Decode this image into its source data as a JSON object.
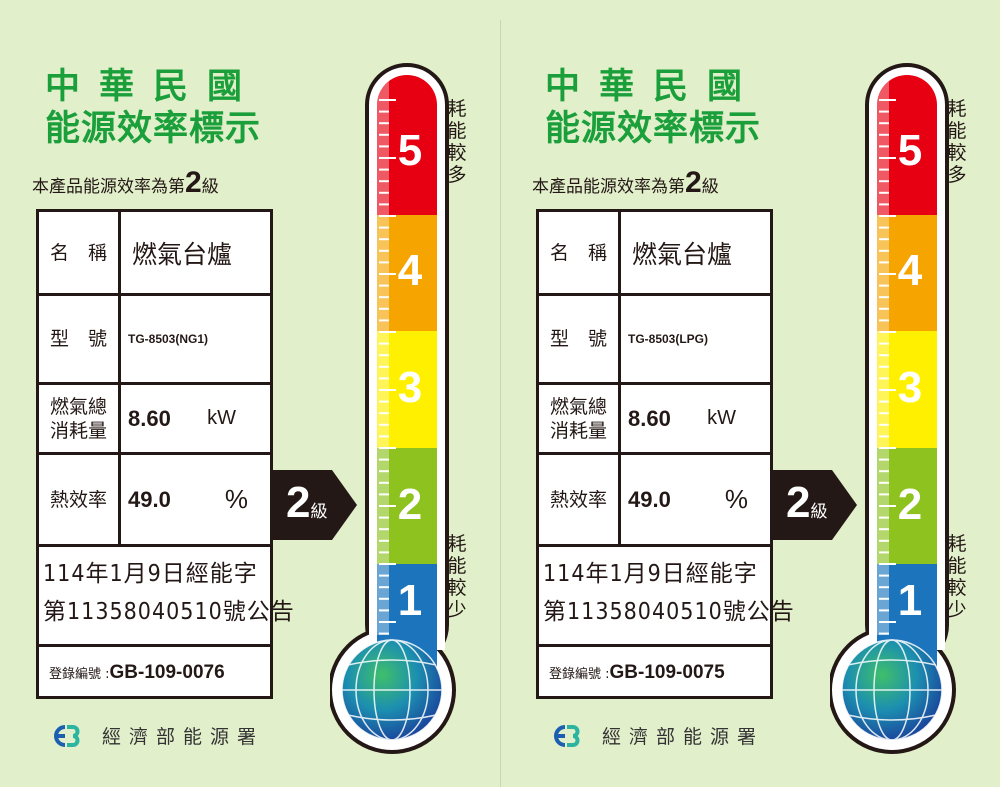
{
  "colors": {
    "title": "#1a9f3b",
    "red": "#e60012",
    "orange": "#f5a400",
    "yellow": "#fff000",
    "green": "#8dc21f",
    "blue": "#1c75bc",
    "background": "#e2efcb"
  },
  "panels": [
    {
      "title_line1": "中華民國",
      "title_line2": "能源效率標示",
      "subtitle_prefix": "本產品能源效率為第",
      "grade": "2",
      "grade_suffix": "級",
      "name_label": "名　稱",
      "name_value": "燃氣台爐",
      "model_label": "型　號",
      "model_value": "TG-8503(NG1)",
      "gas_label": "燃氣總消耗量",
      "gas_value": "8.60",
      "gas_unit": "kW",
      "eff_label": "熱效率",
      "eff_value": "49.0",
      "eff_unit": "%",
      "notice_line1": "114年1月9日經能字",
      "notice_line2": "第11358040510號公告",
      "reg_label": "登錄編號 :",
      "reg_value": "GB-109-0076",
      "arrow_grade": "2",
      "arrow_suffix": "級",
      "levels": [
        "5",
        "4",
        "3",
        "2",
        "1"
      ],
      "more_label": "耗能較多",
      "less_label": "耗能較少",
      "logo": "eb-logo",
      "agency": "經濟部能源署"
    },
    {
      "title_line1": "中華民國",
      "title_line2": "能源效率標示",
      "subtitle_prefix": "本產品能源效率為第",
      "grade": "2",
      "grade_suffix": "級",
      "name_label": "名　稱",
      "name_value": "燃氣台爐",
      "model_label": "型　號",
      "model_value": "TG-8503(LPG)",
      "gas_label": "燃氣總消耗量",
      "gas_value": "8.60",
      "gas_unit": "kW",
      "eff_label": "熱效率",
      "eff_value": "49.0",
      "eff_unit": "%",
      "notice_line1": "114年1月9日經能字",
      "notice_line2": "第11358040510號公告",
      "reg_label": "登錄編號 :",
      "reg_value": "GB-109-0075",
      "arrow_grade": "2",
      "arrow_suffix": "級",
      "levels": [
        "5",
        "4",
        "3",
        "2",
        "1"
      ],
      "more_label": "耗能較多",
      "less_label": "耗能較少",
      "logo": "eb-logo",
      "agency": "經濟部能源署"
    }
  ]
}
